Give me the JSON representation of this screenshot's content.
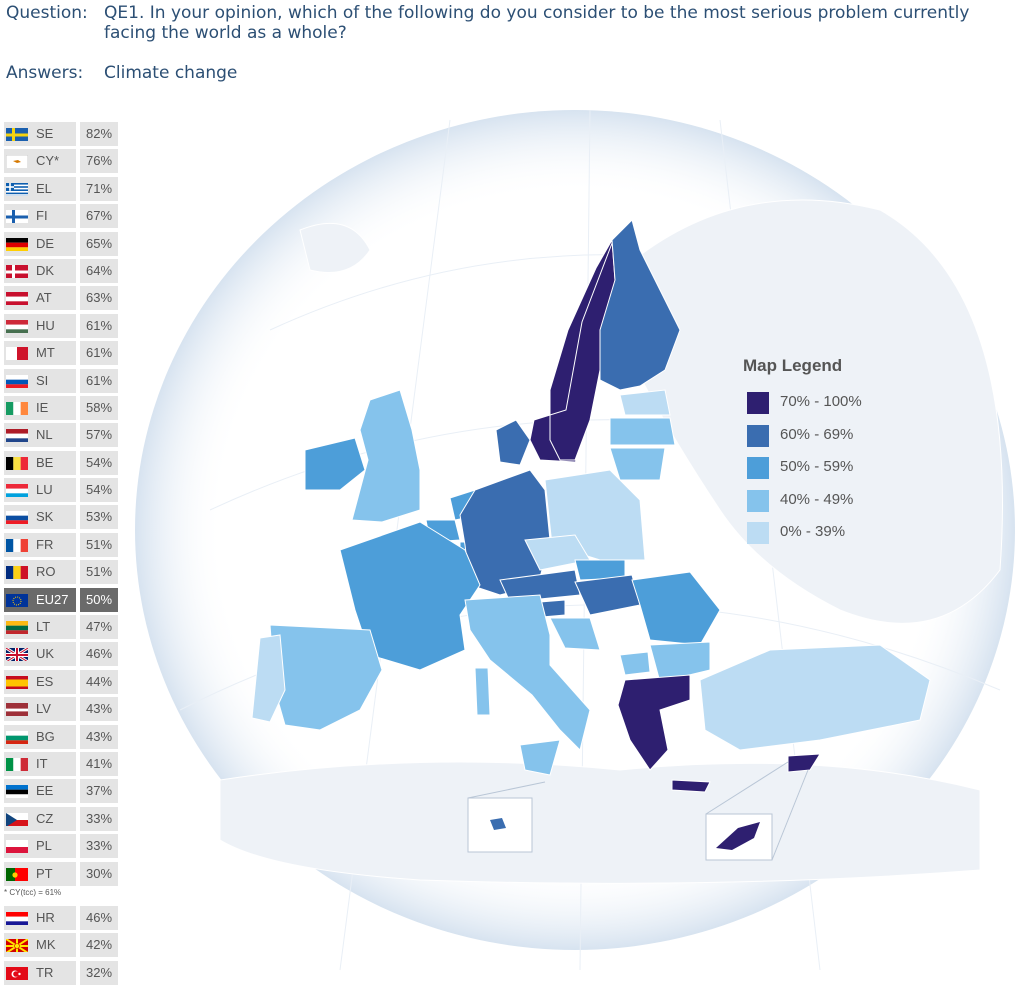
{
  "header": {
    "question_label": "Question:",
    "question_text": "QE1. In your opinion, which of the following do you consider to be the most serious problem currently facing the world as a whole?",
    "answers_label": "Answers:",
    "answers_text": "Climate change"
  },
  "rows": [
    {
      "code": "SE",
      "value": "82%",
      "flag": "se"
    },
    {
      "code": "CY*",
      "value": "76%",
      "flag": "cy"
    },
    {
      "code": "EL",
      "value": "71%",
      "flag": "el"
    },
    {
      "code": "FI",
      "value": "67%",
      "flag": "fi"
    },
    {
      "code": "DE",
      "value": "65%",
      "flag": "de"
    },
    {
      "code": "DK",
      "value": "64%",
      "flag": "dk"
    },
    {
      "code": "AT",
      "value": "63%",
      "flag": "at"
    },
    {
      "code": "HU",
      "value": "61%",
      "flag": "hu"
    },
    {
      "code": "MT",
      "value": "61%",
      "flag": "mt"
    },
    {
      "code": "SI",
      "value": "61%",
      "flag": "si"
    },
    {
      "code": "IE",
      "value": "58%",
      "flag": "ie"
    },
    {
      "code": "NL",
      "value": "57%",
      "flag": "nl"
    },
    {
      "code": "BE",
      "value": "54%",
      "flag": "be"
    },
    {
      "code": "LU",
      "value": "54%",
      "flag": "lu"
    },
    {
      "code": "SK",
      "value": "53%",
      "flag": "sk"
    },
    {
      "code": "FR",
      "value": "51%",
      "flag": "fr"
    },
    {
      "code": "RO",
      "value": "51%",
      "flag": "ro"
    },
    {
      "code": "EU27",
      "value": "50%",
      "flag": "eu",
      "highlight": true
    },
    {
      "code": "LT",
      "value": "47%",
      "flag": "lt"
    },
    {
      "code": "UK",
      "value": "46%",
      "flag": "uk"
    },
    {
      "code": "ES",
      "value": "44%",
      "flag": "es"
    },
    {
      "code": "LV",
      "value": "43%",
      "flag": "lv"
    },
    {
      "code": "BG",
      "value": "43%",
      "flag": "bg"
    },
    {
      "code": "IT",
      "value": "41%",
      "flag": "it"
    },
    {
      "code": "EE",
      "value": "37%",
      "flag": "ee"
    },
    {
      "code": "CZ",
      "value": "33%",
      "flag": "cz"
    },
    {
      "code": "PL",
      "value": "33%",
      "flag": "pl"
    },
    {
      "code": "PT",
      "value": "30%",
      "flag": "pt"
    }
  ],
  "footnote": "* CY(tcc) = 61%",
  "candidate_rows": [
    {
      "code": "HR",
      "value": "46%",
      "flag": "hr"
    },
    {
      "code": "MK",
      "value": "42%",
      "flag": "mk"
    },
    {
      "code": "TR",
      "value": "32%",
      "flag": "tr"
    }
  ],
  "legend": {
    "title": "Map Legend",
    "items": [
      {
        "label": "70% - 100%",
        "color": "#2e1f70"
      },
      {
        "label": "60% - 69%",
        "color": "#3a6db0"
      },
      {
        "label": "50% - 59%",
        "color": "#4d9ed9"
      },
      {
        "label": "40% - 49%",
        "color": "#85c3ec"
      },
      {
        "label": "0% - 39%",
        "color": "#bcdcf3"
      }
    ]
  }
}
